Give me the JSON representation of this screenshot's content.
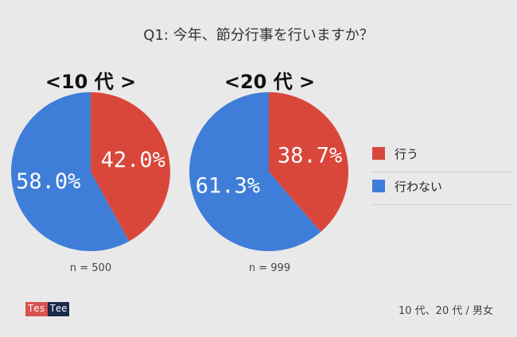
{
  "title": "Q1: 今年、節分行事を行いますか？",
  "colors": {
    "do": "#d9473b",
    "not": "#3f7ed8"
  },
  "legend": [
    {
      "label": "行う",
      "color": "#d9473b"
    },
    {
      "label": "行わない",
      "color": "#3f7ed8"
    }
  ],
  "chart_data": [
    {
      "type": "pie",
      "title": "<10 代 >",
      "slices": [
        {
          "label": "行う",
          "value": 42.0,
          "text": "42.0%",
          "color": "#d9473b"
        },
        {
          "label": "行わない",
          "value": 58.0,
          "text": "58.0%",
          "color": "#3f7ed8"
        }
      ],
      "n_text": "n = 500"
    },
    {
      "type": "pie",
      "title": "<20 代 >",
      "slices": [
        {
          "label": "行う",
          "value": 38.7,
          "text": "38.7%",
          "color": "#d9473b"
        },
        {
          "label": "行わない",
          "value": 61.3,
          "text": "61.3%",
          "color": "#3f7ed8"
        }
      ],
      "n_text": "n = 999"
    }
  ],
  "logo": {
    "part1": "Tes",
    "part2": "Tee"
  },
  "footer": "10 代、20 代 / 男女"
}
